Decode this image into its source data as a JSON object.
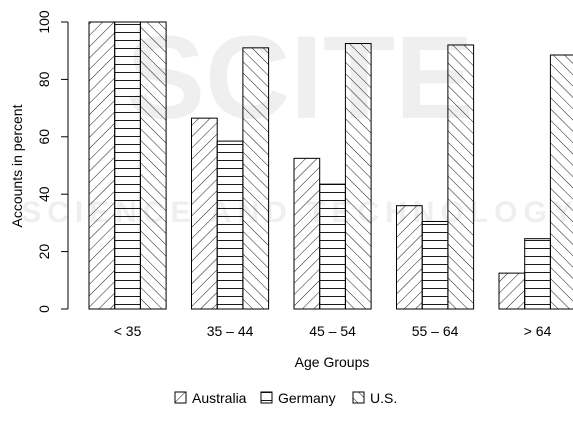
{
  "chart_data": {
    "type": "bar",
    "categories": [
      "< 35",
      "35 – 44",
      "45 – 54",
      "55 – 64",
      "> 64"
    ],
    "series": [
      {
        "name": "Australia",
        "values": [
          100,
          66.5,
          52.5,
          36,
          12.5
        ],
        "pattern": "diag-fwd"
      },
      {
        "name": "Germany",
        "values": [
          100,
          58.5,
          43.5,
          30.5,
          24.5
        ],
        "pattern": "horizontal"
      },
      {
        "name": "U.S.",
        "values": [
          100,
          91,
          92.5,
          92,
          88.5
        ],
        "pattern": "diag-back"
      }
    ],
    "xlabel": "Age Groups",
    "ylabel": "Accounts in percent",
    "ylim": [
      0,
      100
    ],
    "yticks": [
      0,
      20,
      40,
      60,
      80,
      100
    ],
    "grid": false,
    "legend_position": "bottom-center"
  },
  "watermark": {
    "main": "SCITE",
    "sub": "SCIENCE AND TECHNOLOGY"
  }
}
